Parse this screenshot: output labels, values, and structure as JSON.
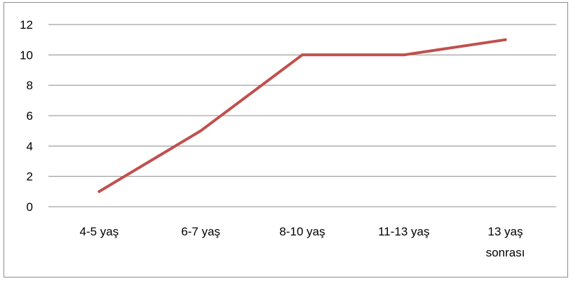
{
  "chart_data": {
    "type": "line",
    "categories": [
      [
        "4-5 yaş"
      ],
      [
        "6-7 yaş"
      ],
      [
        "8-10 yaş"
      ],
      [
        "11-13 yaş"
      ],
      [
        "13 yaş",
        "sonrası"
      ]
    ],
    "series": [
      {
        "values": [
          1,
          5,
          10,
          10,
          11
        ]
      }
    ],
    "ylim": [
      0,
      12
    ],
    "yticks": [
      "0",
      "2",
      "4",
      "6",
      "8",
      "10",
      "12"
    ],
    "grid": true,
    "legend": "none",
    "line_color": "#c0504d",
    "grid_color": "#8c8c8c"
  }
}
